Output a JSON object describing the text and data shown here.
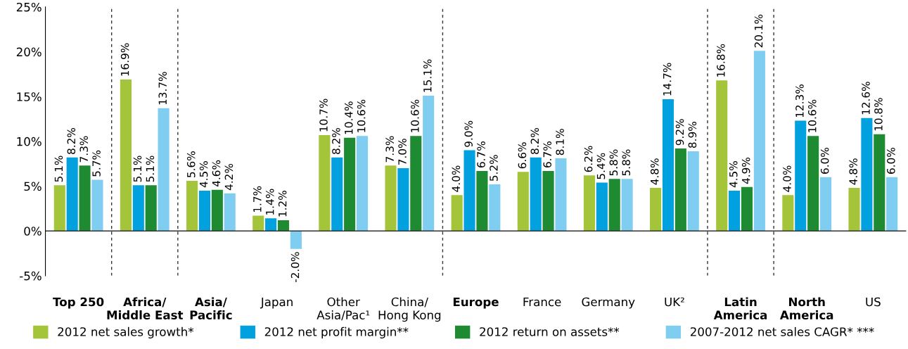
{
  "chart_data": {
    "type": "bar",
    "categories": [
      "Top 250",
      "Africa/\nMiddle East",
      "Asia/\nPacific",
      "Japan",
      "Other\nAsia/Pac¹",
      "China/\nHong Kong",
      "Europe",
      "France",
      "Germany",
      "UK²",
      "Latin\nAmerica",
      "North\nAmerica",
      "US"
    ],
    "series": [
      {
        "name": "2012 net sales growth*",
        "color": "#a4c539",
        "values": [
          5.1,
          16.9,
          5.6,
          1.7,
          10.7,
          7.3,
          4.0,
          6.6,
          6.2,
          4.8,
          16.8,
          4.0,
          4.8
        ],
        "value_labels": [
          "5.1%",
          "16.9%",
          "5.6%",
          "1.7%",
          "10.7%",
          "7.3%",
          "4.0%",
          "6.6%",
          "6.2%",
          "4.8%",
          "16.8%",
          "4.0%",
          "4.8%"
        ]
      },
      {
        "name": "2012 net profit margin**",
        "color": "#00a1de",
        "values": [
          8.2,
          5.1,
          4.5,
          1.4,
          8.2,
          7.0,
          9.0,
          8.2,
          5.4,
          14.7,
          4.5,
          12.3,
          12.6
        ],
        "value_labels": [
          "8.2%",
          "5.1%",
          "4.5%",
          "1.4%",
          "8.2%",
          "7.0%",
          "9.0%",
          "8.2%",
          "5.4%",
          "14.7%",
          "4.5%",
          "12.3%",
          "12.6%"
        ]
      },
      {
        "name": "2012 return on assets**",
        "color": "#1e8b33",
        "values": [
          7.3,
          5.1,
          4.6,
          1.2,
          10.4,
          10.6,
          6.7,
          6.7,
          5.8,
          9.2,
          4.9,
          10.6,
          10.8
        ],
        "value_labels": [
          "7.3%",
          "5.1%",
          "4.6%",
          "1.2%",
          "10.4%",
          "10.6%",
          "6.7%",
          "6.7%",
          "5.8%",
          "9.2%",
          "4.9%",
          "10.6%",
          "10.8%"
        ]
      },
      {
        "name": "2007-2012 net sales CAGR* ***",
        "color": "#7fcdf0",
        "values": [
          5.7,
          13.7,
          4.2,
          -2.0,
          10.6,
          15.1,
          5.2,
          8.1,
          5.8,
          8.9,
          20.1,
          6.0,
          6.0
        ],
        "value_labels": [
          "5.7%",
          "13.7%",
          "4.2%",
          "-2.0%",
          "10.6%",
          "15.1%",
          "5.2%",
          "8.1%",
          "5.8%",
          "8.9%",
          "20.1%",
          "6.0%",
          "6.0%"
        ]
      }
    ],
    "ylim": [
      -5,
      25
    ],
    "yticks": [
      {
        "value": -5,
        "label": "-5%"
      },
      {
        "value": 0,
        "label": "0%"
      },
      {
        "value": 5,
        "label": "5%"
      },
      {
        "value": 10,
        "label": "10%"
      },
      {
        "value": 15,
        "label": "15%"
      },
      {
        "value": 20,
        "label": "20%"
      },
      {
        "value": 25,
        "label": "25%"
      }
    ],
    "ref_lines": [
      {
        "axis": "y",
        "value": 0,
        "color": "#333333",
        "line_style": "solid"
      }
    ],
    "grid": false,
    "legend": "bottom"
  }
}
